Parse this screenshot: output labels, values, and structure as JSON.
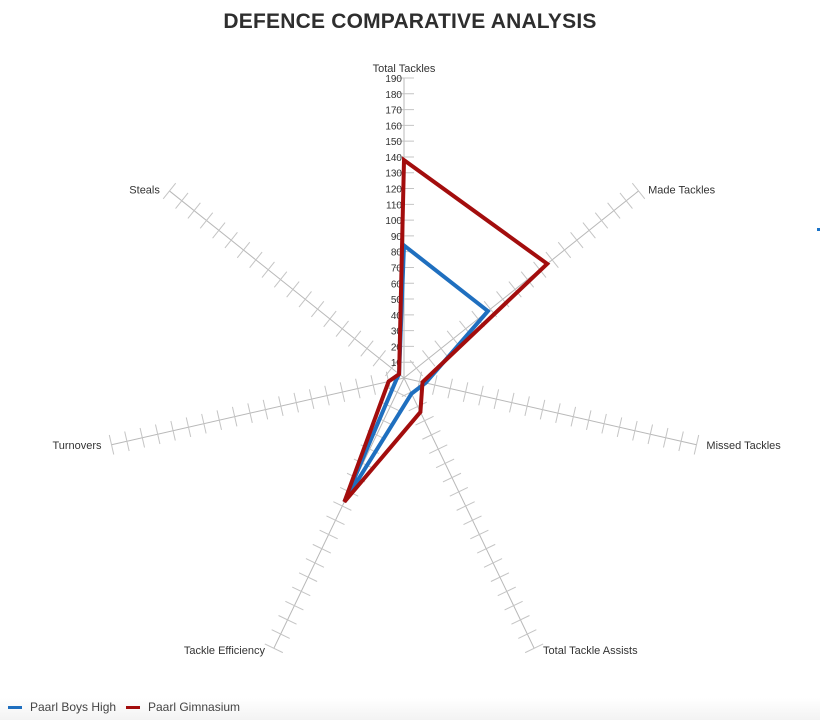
{
  "chart_data": {
    "type": "radar",
    "title": "DEFENCE COMPARATIVE ANALYSIS",
    "axes": [
      "Total Tackles",
      "Made Tackles",
      "Missed Tackles",
      "Total Tackle Assists",
      "Tackle Efficiency",
      "Turnovers",
      "Steals"
    ],
    "radial_ticks": [
      10,
      20,
      30,
      40,
      50,
      60,
      70,
      80,
      90,
      100,
      110,
      120,
      130,
      140,
      150,
      160,
      170,
      180,
      190
    ],
    "rlim": [
      0,
      190
    ],
    "series": [
      {
        "name": "Paarl Boys High",
        "color": "#1f6fbf",
        "values": [
          84,
          68,
          14,
          11,
          87,
          5,
          4
        ]
      },
      {
        "name": "Paarl Gimnasium",
        "color": "#a30d0d",
        "values": [
          138,
          116,
          12,
          24,
          87,
          10,
          4
        ]
      }
    ],
    "legend_position": "bottom-left"
  }
}
